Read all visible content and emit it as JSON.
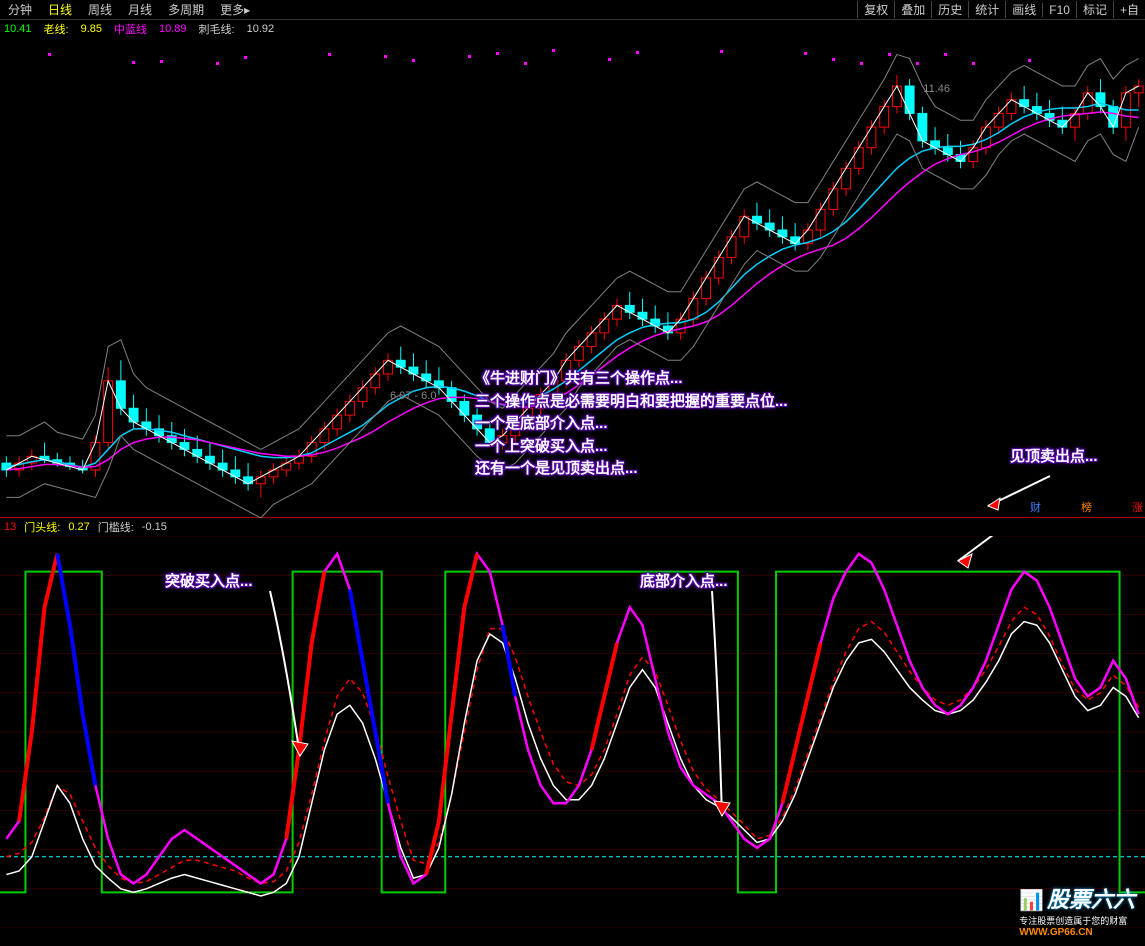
{
  "toolbar": {
    "tabs": [
      "分钟",
      "日线",
      "周线",
      "月线",
      "多周期",
      "更多▸"
    ],
    "active_tab": 1,
    "right_buttons": [
      "复权",
      "叠加",
      "历史",
      "统计",
      "画线",
      "F10",
      "标记",
      "+自"
    ]
  },
  "main_chart": {
    "legend": {
      "val1": "10.41",
      "lbl2": "老线:",
      "val2": "9.85",
      "lbl3": "中蓝线",
      "val3": "10.89",
      "lbl4": "刺毛线:",
      "val4": "10.92"
    },
    "price_label": "11.46",
    "mid_label": "6.07 - 6.0",
    "right_badges": [
      "财",
      "榜",
      "涨"
    ],
    "colors": {
      "bg": "#000000",
      "candle_up": "#ff0000",
      "candle_dn": "#00ffff",
      "ma1": "#ffffff",
      "ma2": "#00d0ff",
      "ma3": "#ff00ff",
      "band": "#808080"
    },
    "ylim": [
      5.0,
      12.0
    ],
    "candles": [
      {
        "o": 5.8,
        "h": 5.9,
        "l": 5.6,
        "c": 5.7
      },
      {
        "o": 5.7,
        "h": 5.9,
        "l": 5.6,
        "c": 5.8
      },
      {
        "o": 5.8,
        "h": 6.0,
        "l": 5.7,
        "c": 5.9
      },
      {
        "o": 5.9,
        "h": 6.1,
        "l": 5.8,
        "c": 5.85
      },
      {
        "o": 5.85,
        "h": 5.95,
        "l": 5.75,
        "c": 5.8
      },
      {
        "o": 5.8,
        "h": 5.9,
        "l": 5.7,
        "c": 5.75
      },
      {
        "o": 5.75,
        "h": 5.85,
        "l": 5.65,
        "c": 5.7
      },
      {
        "o": 5.7,
        "h": 6.2,
        "l": 5.6,
        "c": 6.1
      },
      {
        "o": 6.1,
        "h": 7.2,
        "l": 6.0,
        "c": 7.0
      },
      {
        "o": 7.0,
        "h": 7.3,
        "l": 6.5,
        "c": 6.6
      },
      {
        "o": 6.6,
        "h": 6.8,
        "l": 6.3,
        "c": 6.4
      },
      {
        "o": 6.4,
        "h": 6.6,
        "l": 6.2,
        "c": 6.3
      },
      {
        "o": 6.3,
        "h": 6.5,
        "l": 6.1,
        "c": 6.2
      },
      {
        "o": 6.2,
        "h": 6.4,
        "l": 6.0,
        "c": 6.1
      },
      {
        "o": 6.1,
        "h": 6.3,
        "l": 5.9,
        "c": 6.0
      },
      {
        "o": 6.0,
        "h": 6.2,
        "l": 5.8,
        "c": 5.9
      },
      {
        "o": 5.9,
        "h": 6.1,
        "l": 5.7,
        "c": 5.8
      },
      {
        "o": 5.8,
        "h": 6.0,
        "l": 5.6,
        "c": 5.7
      },
      {
        "o": 5.7,
        "h": 5.9,
        "l": 5.5,
        "c": 5.6
      },
      {
        "o": 5.6,
        "h": 5.8,
        "l": 5.4,
        "c": 5.5
      },
      {
        "o": 5.5,
        "h": 5.7,
        "l": 5.3,
        "c": 5.6
      },
      {
        "o": 5.6,
        "h": 5.8,
        "l": 5.5,
        "c": 5.7
      },
      {
        "o": 5.7,
        "h": 5.9,
        "l": 5.6,
        "c": 5.8
      },
      {
        "o": 5.8,
        "h": 6.0,
        "l": 5.7,
        "c": 5.9
      },
      {
        "o": 5.9,
        "h": 6.2,
        "l": 5.8,
        "c": 6.1
      },
      {
        "o": 6.1,
        "h": 6.4,
        "l": 6.0,
        "c": 6.3
      },
      {
        "o": 6.3,
        "h": 6.6,
        "l": 6.2,
        "c": 6.5
      },
      {
        "o": 6.5,
        "h": 6.8,
        "l": 6.4,
        "c": 6.7
      },
      {
        "o": 6.7,
        "h": 7.0,
        "l": 6.6,
        "c": 6.9
      },
      {
        "o": 6.9,
        "h": 7.2,
        "l": 6.8,
        "c": 7.1
      },
      {
        "o": 7.1,
        "h": 7.4,
        "l": 7.0,
        "c": 7.3
      },
      {
        "o": 7.3,
        "h": 7.5,
        "l": 7.1,
        "c": 7.2
      },
      {
        "o": 7.2,
        "h": 7.4,
        "l": 7.0,
        "c": 7.1
      },
      {
        "o": 7.1,
        "h": 7.3,
        "l": 6.9,
        "c": 7.0
      },
      {
        "o": 7.0,
        "h": 7.2,
        "l": 6.8,
        "c": 6.9
      },
      {
        "o": 6.9,
        "h": 7.0,
        "l": 6.6,
        "c": 6.7
      },
      {
        "o": 6.7,
        "h": 6.8,
        "l": 6.4,
        "c": 6.5
      },
      {
        "o": 6.5,
        "h": 6.6,
        "l": 6.2,
        "c": 6.3
      },
      {
        "o": 6.3,
        "h": 6.4,
        "l": 6.05,
        "c": 6.1
      },
      {
        "o": 6.1,
        "h": 6.3,
        "l": 6.0,
        "c": 6.2
      },
      {
        "o": 6.2,
        "h": 6.5,
        "l": 6.1,
        "c": 6.4
      },
      {
        "o": 6.4,
        "h": 6.7,
        "l": 6.3,
        "c": 6.6
      },
      {
        "o": 6.6,
        "h": 6.9,
        "l": 6.5,
        "c": 6.8
      },
      {
        "o": 6.8,
        "h": 7.1,
        "l": 6.7,
        "c": 7.0
      },
      {
        "o": 7.0,
        "h": 7.4,
        "l": 6.9,
        "c": 7.3
      },
      {
        "o": 7.3,
        "h": 7.6,
        "l": 7.2,
        "c": 7.5
      },
      {
        "o": 7.5,
        "h": 7.8,
        "l": 7.4,
        "c": 7.7
      },
      {
        "o": 7.7,
        "h": 8.0,
        "l": 7.6,
        "c": 7.9
      },
      {
        "o": 7.9,
        "h": 8.2,
        "l": 7.8,
        "c": 8.1
      },
      {
        "o": 8.1,
        "h": 8.3,
        "l": 7.9,
        "c": 8.0
      },
      {
        "o": 8.0,
        "h": 8.2,
        "l": 7.8,
        "c": 7.9
      },
      {
        "o": 7.9,
        "h": 8.1,
        "l": 7.7,
        "c": 7.8
      },
      {
        "o": 7.8,
        "h": 8.0,
        "l": 7.6,
        "c": 7.7
      },
      {
        "o": 7.7,
        "h": 8.0,
        "l": 7.6,
        "c": 7.9
      },
      {
        "o": 7.9,
        "h": 8.3,
        "l": 7.8,
        "c": 8.2
      },
      {
        "o": 8.2,
        "h": 8.6,
        "l": 8.1,
        "c": 8.5
      },
      {
        "o": 8.5,
        "h": 8.9,
        "l": 8.4,
        "c": 8.8
      },
      {
        "o": 8.8,
        "h": 9.2,
        "l": 8.7,
        "c": 9.1
      },
      {
        "o": 9.1,
        "h": 9.5,
        "l": 9.0,
        "c": 9.4
      },
      {
        "o": 9.4,
        "h": 9.6,
        "l": 9.2,
        "c": 9.3
      },
      {
        "o": 9.3,
        "h": 9.5,
        "l": 9.1,
        "c": 9.2
      },
      {
        "o": 9.2,
        "h": 9.4,
        "l": 9.0,
        "c": 9.1
      },
      {
        "o": 9.1,
        "h": 9.3,
        "l": 8.9,
        "c": 9.0
      },
      {
        "o": 9.0,
        "h": 9.3,
        "l": 8.9,
        "c": 9.2
      },
      {
        "o": 9.2,
        "h": 9.6,
        "l": 9.1,
        "c": 9.5
      },
      {
        "o": 9.5,
        "h": 9.9,
        "l": 9.4,
        "c": 9.8
      },
      {
        "o": 9.8,
        "h": 10.2,
        "l": 9.7,
        "c": 10.1
      },
      {
        "o": 10.1,
        "h": 10.5,
        "l": 10.0,
        "c": 10.4
      },
      {
        "o": 10.4,
        "h": 10.8,
        "l": 10.3,
        "c": 10.7
      },
      {
        "o": 10.7,
        "h": 11.1,
        "l": 10.6,
        "c": 11.0
      },
      {
        "o": 11.0,
        "h": 11.46,
        "l": 10.9,
        "c": 11.3
      },
      {
        "o": 11.3,
        "h": 11.4,
        "l": 10.8,
        "c": 10.9
      },
      {
        "o": 10.9,
        "h": 11.0,
        "l": 10.4,
        "c": 10.5
      },
      {
        "o": 10.5,
        "h": 10.7,
        "l": 10.3,
        "c": 10.4
      },
      {
        "o": 10.4,
        "h": 10.6,
        "l": 10.2,
        "c": 10.3
      },
      {
        "o": 10.3,
        "h": 10.5,
        "l": 10.1,
        "c": 10.2
      },
      {
        "o": 10.2,
        "h": 10.5,
        "l": 10.1,
        "c": 10.4
      },
      {
        "o": 10.4,
        "h": 10.8,
        "l": 10.3,
        "c": 10.7
      },
      {
        "o": 10.7,
        "h": 11.0,
        "l": 10.6,
        "c": 10.9
      },
      {
        "o": 10.9,
        "h": 11.2,
        "l": 10.8,
        "c": 11.1
      },
      {
        "o": 11.1,
        "h": 11.3,
        "l": 10.9,
        "c": 11.0
      },
      {
        "o": 11.0,
        "h": 11.2,
        "l": 10.8,
        "c": 10.9
      },
      {
        "o": 10.9,
        "h": 11.1,
        "l": 10.7,
        "c": 10.8
      },
      {
        "o": 10.8,
        "h": 11.0,
        "l": 10.6,
        "c": 10.7
      },
      {
        "o": 10.7,
        "h": 11.0,
        "l": 10.5,
        "c": 10.9
      },
      {
        "o": 10.9,
        "h": 11.3,
        "l": 10.8,
        "c": 11.2
      },
      {
        "o": 11.2,
        "h": 11.4,
        "l": 10.9,
        "c": 11.0
      },
      {
        "o": 11.0,
        "h": 11.1,
        "l": 10.6,
        "c": 10.7
      },
      {
        "o": 10.7,
        "h": 11.3,
        "l": 10.5,
        "c": 11.2
      },
      {
        "o": 11.2,
        "h": 11.4,
        "l": 11.0,
        "c": 11.3
      }
    ],
    "ma_cyan": [
      5.75,
      5.78,
      5.82,
      5.85,
      5.82,
      5.78,
      5.74,
      5.8,
      6.0,
      6.2,
      6.3,
      6.3,
      6.28,
      6.25,
      6.2,
      6.15,
      6.1,
      6.05,
      6.0,
      5.95,
      5.9,
      5.88,
      5.88,
      5.9,
      5.95,
      6.05,
      6.15,
      6.25,
      6.35,
      6.5,
      6.65,
      6.75,
      6.85,
      6.9,
      6.92,
      6.9,
      6.85,
      6.78,
      6.7,
      6.65,
      6.65,
      6.7,
      6.78,
      6.88,
      7.0,
      7.15,
      7.3,
      7.45,
      7.6,
      7.7,
      7.78,
      7.82,
      7.84,
      7.85,
      7.9,
      8.0,
      8.15,
      8.35,
      8.55,
      8.7,
      8.82,
      8.92,
      8.98,
      9.02,
      9.08,
      9.18,
      9.32,
      9.5,
      9.7,
      9.9,
      10.1,
      10.25,
      10.35,
      10.4,
      10.42,
      10.42,
      10.45,
      10.52,
      10.62,
      10.75,
      10.85,
      10.92,
      10.96,
      10.98,
      10.98,
      11.0,
      11.05,
      11.0,
      10.95,
      10.95
    ],
    "ma_magenta": [
      5.7,
      5.72,
      5.75,
      5.78,
      5.78,
      5.76,
      5.74,
      5.75,
      5.85,
      6.0,
      6.1,
      6.15,
      6.18,
      6.18,
      6.16,
      6.14,
      6.1,
      6.06,
      6.02,
      5.98,
      5.94,
      5.92,
      5.9,
      5.9,
      5.92,
      5.96,
      6.02,
      6.1,
      6.18,
      6.28,
      6.4,
      6.5,
      6.6,
      6.68,
      6.74,
      6.76,
      6.76,
      6.74,
      6.7,
      6.66,
      6.62,
      6.62,
      6.65,
      6.72,
      6.82,
      6.94,
      7.08,
      7.22,
      7.36,
      7.48,
      7.58,
      7.66,
      7.72,
      7.76,
      7.8,
      7.86,
      7.96,
      8.1,
      8.26,
      8.42,
      8.56,
      8.68,
      8.78,
      8.86,
      8.92,
      8.98,
      9.08,
      9.22,
      9.38,
      9.56,
      9.74,
      9.9,
      10.04,
      10.16,
      10.24,
      10.3,
      10.34,
      10.4,
      10.48,
      10.58,
      10.68,
      10.76,
      10.82,
      10.86,
      10.88,
      10.9,
      10.92,
      10.9,
      10.86,
      10.84
    ]
  },
  "sub_chart": {
    "legend": {
      "val1": "13",
      "lbl2": "门头线:",
      "val2": "0.27",
      "lbl3": "门槛线:",
      "val3": "-0.15"
    },
    "colors": {
      "line_white": "#ffffff",
      "line_magenta": "#ff00ff",
      "line_red_dash": "#ff0000",
      "step_green": "#00cc00",
      "ref_cyan": "#00ffff",
      "seg_red": "#ff0000",
      "seg_blue": "#0000ff",
      "grid": "#300000"
    },
    "ylim": [
      -100,
      120
    ],
    "ref_level": -60,
    "magenta": [
      -50,
      -40,
      10,
      80,
      110,
      70,
      20,
      -20,
      -50,
      -70,
      -75,
      -70,
      -60,
      -50,
      -45,
      -50,
      -55,
      -60,
      -65,
      -70,
      -75,
      -70,
      -50,
      0,
      60,
      100,
      110,
      90,
      50,
      10,
      -30,
      -60,
      -75,
      -70,
      -40,
      20,
      80,
      110,
      100,
      70,
      30,
      0,
      -20,
      -30,
      -30,
      -20,
      0,
      30,
      60,
      80,
      70,
      40,
      10,
      -10,
      -20,
      -25,
      -30,
      -40,
      -50,
      -55,
      -50,
      -30,
      0,
      30,
      60,
      85,
      100,
      110,
      105,
      90,
      70,
      50,
      35,
      25,
      20,
      25,
      35,
      50,
      70,
      90,
      100,
      95,
      80,
      60,
      40,
      30,
      35,
      50,
      40,
      20
    ],
    "white": [
      -70,
      -68,
      -60,
      -40,
      -20,
      -30,
      -50,
      -65,
      -72,
      -78,
      -80,
      -78,
      -75,
      -72,
      -70,
      -72,
      -74,
      -76,
      -78,
      -80,
      -82,
      -80,
      -75,
      -60,
      -30,
      0,
      20,
      25,
      15,
      -5,
      -30,
      -55,
      -72,
      -70,
      -55,
      -25,
      15,
      50,
      65,
      60,
      40,
      15,
      -5,
      -20,
      -28,
      -28,
      -20,
      -5,
      15,
      35,
      45,
      35,
      15,
      -5,
      -20,
      -28,
      -32,
      -38,
      -45,
      -52,
      -50,
      -40,
      -25,
      -5,
      15,
      35,
      50,
      60,
      62,
      55,
      45,
      35,
      28,
      22,
      20,
      22,
      28,
      38,
      50,
      65,
      72,
      70,
      60,
      45,
      30,
      22,
      25,
      35,
      30,
      18
    ],
    "red_dash": [
      -60,
      -58,
      -52,
      -38,
      -20,
      -25,
      -40,
      -55,
      -65,
      -72,
      -75,
      -74,
      -70,
      -66,
      -62,
      -62,
      -64,
      -66,
      -68,
      -72,
      -75,
      -74,
      -68,
      -52,
      -25,
      5,
      30,
      40,
      32,
      12,
      -15,
      -40,
      -62,
      -64,
      -52,
      -25,
      10,
      45,
      68,
      68,
      52,
      30,
      10,
      -8,
      -18,
      -20,
      -14,
      0,
      20,
      42,
      52,
      44,
      25,
      5,
      -12,
      -22,
      -28,
      -35,
      -42,
      -50,
      -48,
      -38,
      -22,
      -2,
      18,
      38,
      55,
      68,
      72,
      66,
      55,
      44,
      35,
      28,
      25,
      28,
      35,
      45,
      58,
      72,
      80,
      76,
      64,
      48,
      34,
      28,
      32,
      42,
      36,
      24
    ],
    "step_green": [
      -80,
      -80,
      100,
      100,
      100,
      100,
      100,
      100,
      -80,
      -80,
      -80,
      -80,
      -80,
      -80,
      -80,
      -80,
      -80,
      -80,
      -80,
      -80,
      -80,
      -80,
      -80,
      100,
      100,
      100,
      100,
      100,
      100,
      100,
      -80,
      -80,
      -80,
      -80,
      -80,
      100,
      100,
      100,
      100,
      100,
      100,
      100,
      100,
      100,
      100,
      100,
      100,
      100,
      100,
      100,
      100,
      100,
      100,
      100,
      100,
      100,
      100,
      100,
      -80,
      -80,
      -80,
      100,
      100,
      100,
      100,
      100,
      100,
      100,
      100,
      100,
      100,
      100,
      100,
      100,
      100,
      100,
      100,
      100,
      100,
      100,
      100,
      100,
      100,
      100,
      100,
      100,
      100,
      100,
      -80,
      -80
    ]
  },
  "annotations": {
    "main_text": [
      "《牛进财门》共有三个操作点...",
      "三个操作点是必需要明白和要把握的重要点位...",
      "一个是底部介入点...",
      "一个上突破买入点...",
      "还有一个是见顶卖出点..."
    ],
    "label_top_sell": "见顶卖出点...",
    "label_breakout": "突破买入点...",
    "label_bottom": "底部介入点..."
  },
  "watermark": {
    "title": "股票六六",
    "subtitle": "专注股票创造属于您的财富",
    "url": "WWW.GP66.CN"
  }
}
